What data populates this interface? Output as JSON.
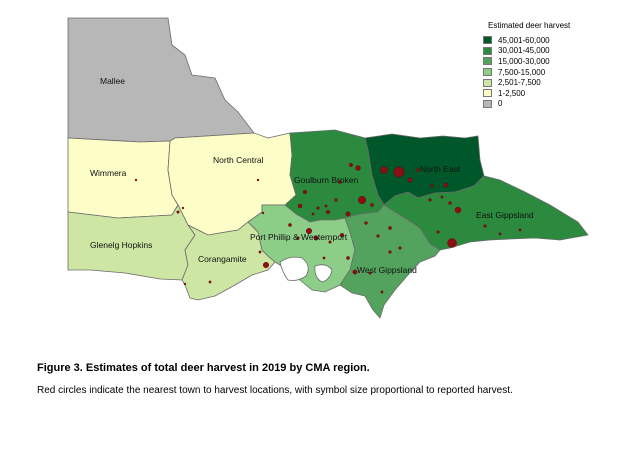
{
  "legend": {
    "title": "Estimated deer harvest",
    "classes": [
      {
        "label": "45,001-60,000",
        "color": "#00582a"
      },
      {
        "label": "30,001-45,000",
        "color": "#2b8a3e"
      },
      {
        "label": "15,000-30,000",
        "color": "#53a35e"
      },
      {
        "label": "7,500-15,000",
        "color": "#8ccd87"
      },
      {
        "label": "2,501-7,500",
        "color": "#cde6a4"
      },
      {
        "label": "1-2,500",
        "color": "#fdfdc7"
      },
      {
        "label": "0",
        "color": "#b7b7b7"
      }
    ]
  },
  "regions": {
    "mallee": {
      "name": "Mallee",
      "harvest_class": "0"
    },
    "wimmera": {
      "name": "Wimmera",
      "harvest_class": "1-2,500"
    },
    "north_central": {
      "name": "North Central",
      "harvest_class": "1-2,500"
    },
    "glenelg_hopkins": {
      "name": "Glenelg Hopkins",
      "harvest_class": "2,501-7,500"
    },
    "corangamite": {
      "name": "Corangamite",
      "harvest_class": "2,501-7,500"
    },
    "goulburn_broken": {
      "name": "Goulburn Broken",
      "harvest_class": "30,001-45,000"
    },
    "north_east": {
      "name": "North East",
      "harvest_class": "45,001-60,000"
    },
    "east_gippsland": {
      "name": "East Gippsland",
      "harvest_class": "30,001-45,000"
    },
    "port_phillip_westernport": {
      "name": "Port Phillip & Westernport",
      "harvest_class": "7,500-15,000"
    },
    "west_gippsland": {
      "name": "West Gippsland",
      "harvest_class": "15,000-30,000"
    }
  },
  "caption": {
    "title": "Figure 3. Estimates of total deer harvest in 2019 by CMA region.",
    "body": "Red circles indicate the nearest town to harvest locations, with symbol size proportional to reported harvest."
  }
}
